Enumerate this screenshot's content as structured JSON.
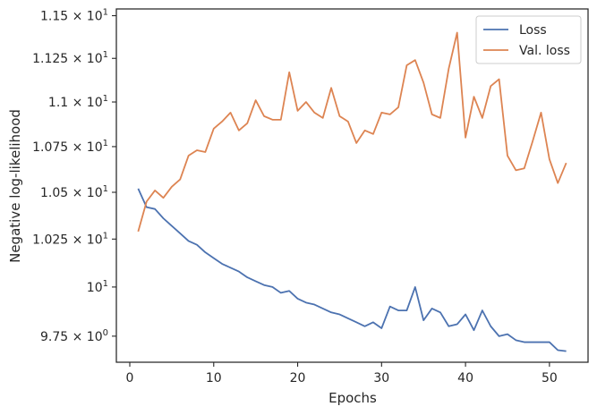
{
  "chart_data": {
    "type": "line",
    "title": "",
    "xlabel": "Epochs",
    "ylabel": "Negative log-likelihood",
    "x_ticks": [
      "0",
      "10",
      "20",
      "30",
      "40",
      "50"
    ],
    "y_ticks": [
      {
        "value": 9.75,
        "mantissa": "9.75",
        "base": "10",
        "exp": "0"
      },
      {
        "value": 10.0,
        "mantissa": "",
        "base": "10",
        "exp": "1"
      },
      {
        "value": 10.25,
        "mantissa": "1.025",
        "base": "10",
        "exp": "1"
      },
      {
        "value": 10.5,
        "mantissa": "1.05",
        "base": "10",
        "exp": "1"
      },
      {
        "value": 10.75,
        "mantissa": "1.075",
        "base": "10",
        "exp": "1"
      },
      {
        "value": 11.0,
        "mantissa": "1.1",
        "base": "10",
        "exp": "1"
      },
      {
        "value": 11.25,
        "mantissa": "1.125",
        "base": "10",
        "exp": "1"
      },
      {
        "value": 11.5,
        "mantissa": "1.15",
        "base": "10",
        "exp": "1"
      }
    ],
    "xlim": [
      -1.6,
      54.6
    ],
    "ylim": [
      9.62,
      11.54
    ],
    "y_scale": "log",
    "grid": false,
    "legend_position": "top-right",
    "x": [
      1,
      2,
      3,
      4,
      5,
      6,
      7,
      8,
      9,
      10,
      11,
      12,
      13,
      14,
      15,
      16,
      17,
      18,
      19,
      20,
      21,
      22,
      23,
      24,
      25,
      26,
      27,
      28,
      29,
      30,
      31,
      32,
      33,
      34,
      35,
      36,
      37,
      38,
      39,
      40,
      41,
      42,
      43,
      44,
      45,
      46,
      47,
      48,
      49,
      50,
      51,
      52
    ],
    "series": [
      {
        "name": "Loss",
        "color": "#4c72b0",
        "values": [
          10.52,
          10.42,
          10.41,
          10.36,
          10.32,
          10.28,
          10.24,
          10.22,
          10.18,
          10.15,
          10.12,
          10.1,
          10.08,
          10.05,
          10.03,
          10.01,
          10.0,
          9.97,
          9.98,
          9.94,
          9.92,
          9.91,
          9.89,
          9.87,
          9.86,
          9.84,
          9.82,
          9.8,
          9.82,
          9.79,
          9.9,
          9.88,
          9.88,
          10.0,
          9.83,
          9.89,
          9.87,
          9.8,
          9.81,
          9.86,
          9.78,
          9.88,
          9.8,
          9.75,
          9.76,
          9.73,
          9.72,
          9.72,
          9.72,
          9.72,
          9.68,
          9.675
        ]
      },
      {
        "name": "Val. loss",
        "color": "#dd8452",
        "values": [
          10.29,
          10.45,
          10.51,
          10.47,
          10.53,
          10.57,
          10.7,
          10.73,
          10.72,
          10.85,
          10.89,
          10.94,
          10.84,
          10.88,
          11.01,
          10.92,
          10.9,
          10.9,
          11.17,
          10.95,
          11.0,
          10.94,
          10.91,
          11.08,
          10.92,
          10.89,
          10.77,
          10.84,
          10.82,
          10.94,
          10.93,
          10.97,
          11.21,
          11.24,
          11.11,
          10.93,
          10.91,
          11.19,
          11.4,
          10.8,
          11.03,
          10.91,
          11.09,
          11.13,
          10.7,
          10.62,
          10.63,
          10.78,
          10.94,
          10.68,
          10.55,
          10.66
        ]
      }
    ]
  }
}
